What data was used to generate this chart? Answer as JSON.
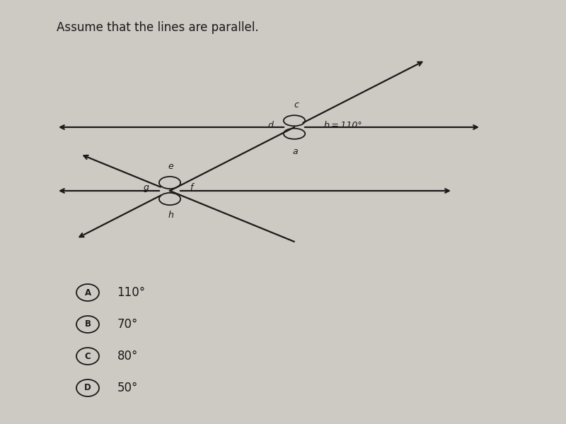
{
  "title": "Assume that the lines are parallel.",
  "bg_color": "#cdc9c3",
  "line_color": "#1a1a1a",
  "text_color": "#1a1a1a",
  "ix1": 0.52,
  "iy1": 0.7,
  "ix2": 0.3,
  "iy2": 0.55,
  "choices": [
    {
      "label": "A",
      "text": "110°"
    },
    {
      "label": "B",
      "text": "70°"
    },
    {
      "label": "C",
      "text": "80°"
    },
    {
      "label": "D",
      "text": "50°"
    }
  ]
}
